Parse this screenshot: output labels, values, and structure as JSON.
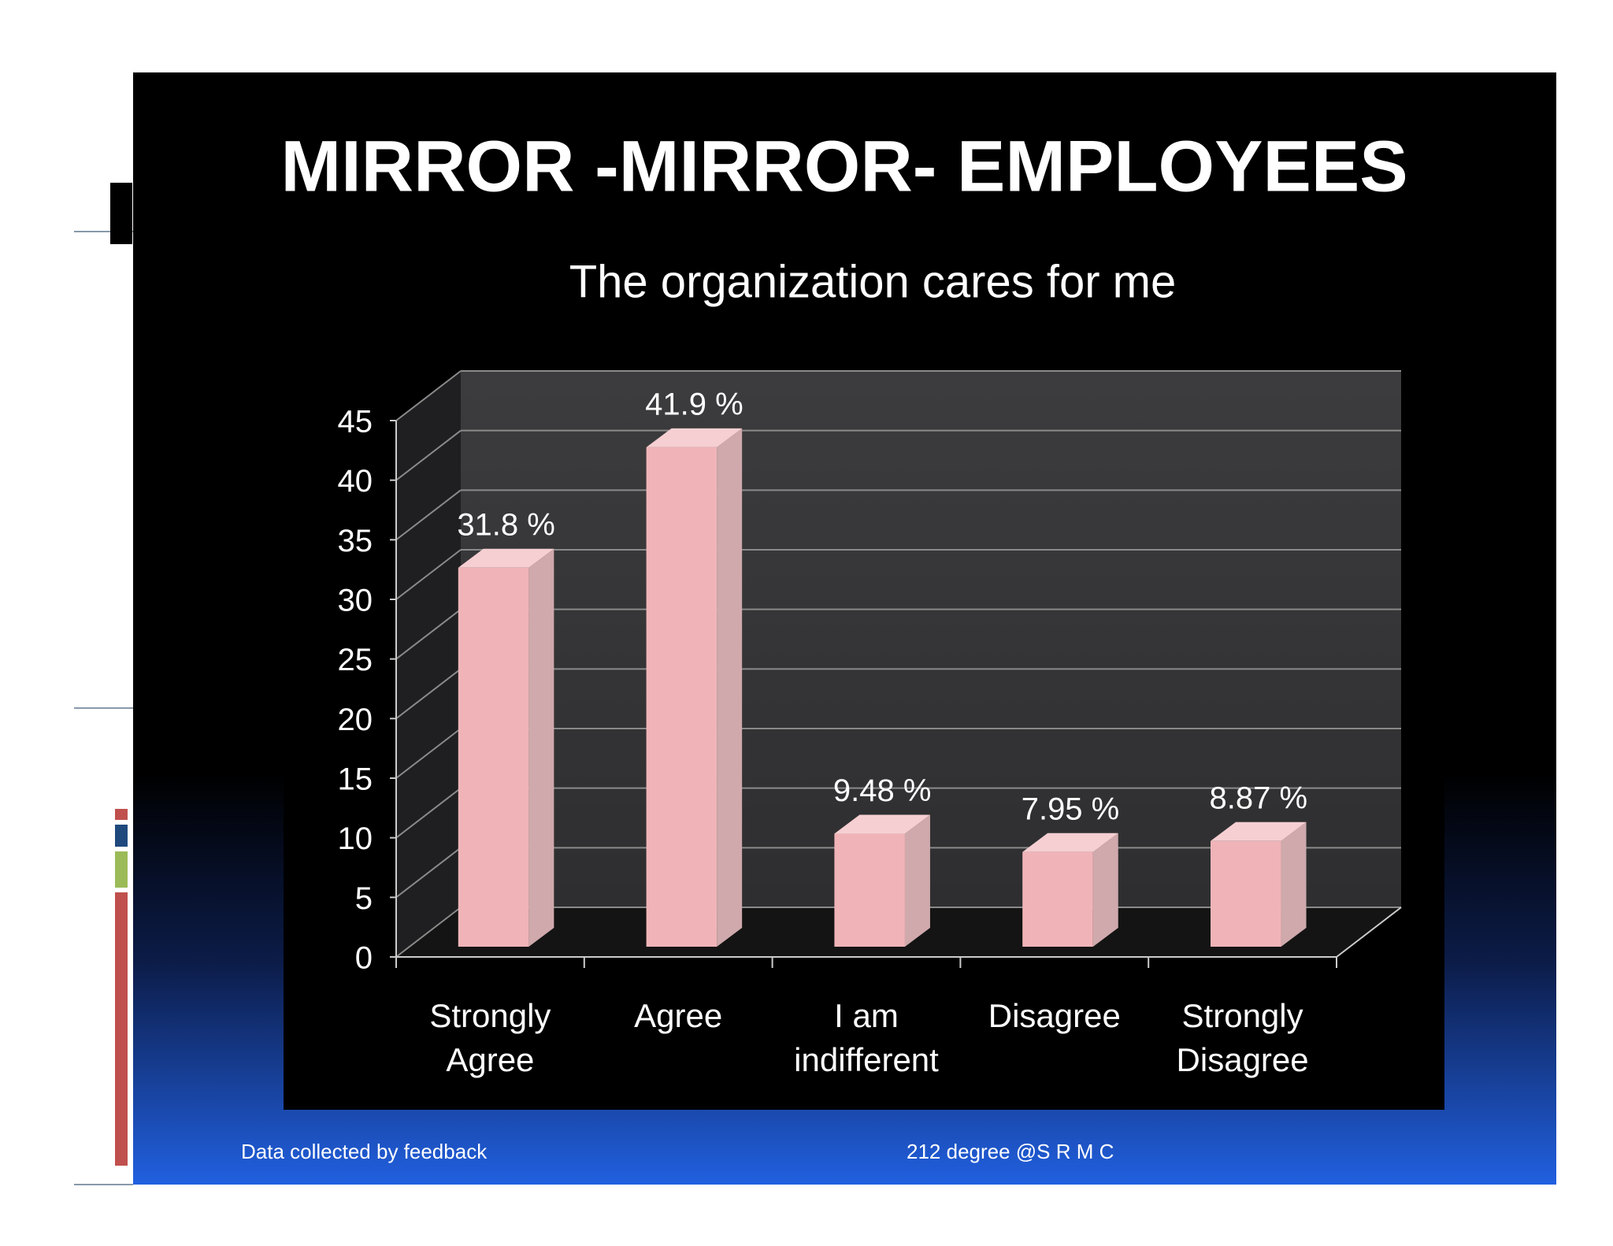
{
  "chart_data": {
    "type": "bar",
    "title": "MIRROR -MIRROR- EMPLOYEES",
    "subtitle": "The organization cares for me",
    "categories": [
      "Strongly Agree",
      "Agree",
      "I am indifferent",
      "Disagree",
      "Strongly Disagree"
    ],
    "values": [
      31.8,
      41.9,
      9.48,
      7.95,
      8.87
    ],
    "value_labels": [
      "31.8 %",
      "41.9 %",
      "9.48 %",
      "7.95 %",
      "8.87 %"
    ],
    "color": "#f0b4b8",
    "ylim": [
      0,
      45
    ],
    "yticks": [
      0,
      5,
      10,
      15,
      20,
      25,
      30,
      35,
      40,
      45
    ],
    "grid": true
  },
  "footer": {
    "left": "Data collected by feedback",
    "center": "212 degree @S R M C"
  }
}
